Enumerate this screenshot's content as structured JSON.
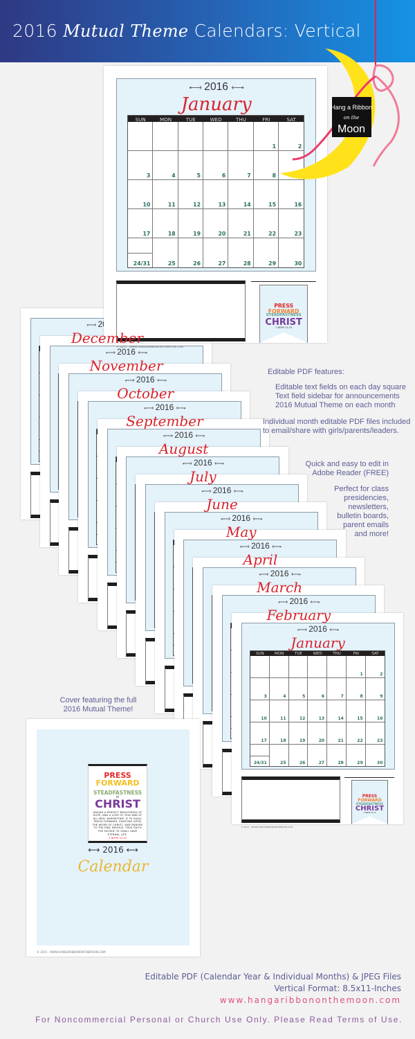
{
  "header": {
    "title_1": "2016",
    "title_script_1": "Mutual",
    "title_script_2": "Theme",
    "title_2": "Calendars:",
    "title_3": "Vertical"
  },
  "logo": {
    "line1": "Hang a Ribbon",
    "line2": "on the",
    "line3": "Moon"
  },
  "calendar": {
    "year": "2016",
    "weekdays": [
      "SUN",
      "MON",
      "TUE",
      "WED",
      "THU",
      "FRI",
      "SAT"
    ],
    "january_weeks": [
      [
        "",
        "",
        "",
        "",
        "",
        "1",
        "2"
      ],
      [
        "3",
        "4",
        "5",
        "6",
        "7",
        "8",
        "9"
      ],
      [
        "10",
        "11",
        "12",
        "13",
        "14",
        "15",
        "16"
      ],
      [
        "17",
        "18",
        "19",
        "20",
        "21",
        "22",
        "23"
      ],
      [
        "24/31",
        "25",
        "26",
        "27",
        "28",
        "29",
        "30"
      ]
    ],
    "stack_months": [
      "December",
      "November",
      "October",
      "September",
      "August",
      "July",
      "June",
      "May",
      "April",
      "March",
      "February",
      "January"
    ],
    "featured_month": "January",
    "banner": {
      "l1": "PRESS",
      "l2": "FORWARD",
      "l3": "STEADFASTNESS",
      "l4": "CHRIST",
      "l5": "2 NEPHI 31:20"
    },
    "copyright": "© 2015 · WWW.HANGARIBBONONTHEMOON.COM"
  },
  "features": {
    "heading": "Editable PDF features:",
    "items": [
      "Editable text fields on each day square",
      "Text field sidebar for announcements",
      "2016 Mutual Theme on each month"
    ],
    "individual": [
      "Individual month editable PDF files included",
      "to email/share with girls/parents/leaders."
    ],
    "quick": [
      "Quick and easy to edit in",
      "Adobe Reader (FREE)"
    ],
    "perfect": [
      "Perfect for class",
      "presidencies,",
      "newsletters,",
      "bulletin boards,",
      "parent emails",
      "and more!"
    ]
  },
  "cover": {
    "caption": [
      "Cover featuring the full",
      "2016 Mutual Theme!"
    ],
    "poster": {
      "l1": "PRESS",
      "l2": "FORWARD",
      "l3": "STEADFASTNESS",
      "l3b": "IN",
      "l4": "CHRIST",
      "scripture": "HAVING A PERFECT BRIGHTNESS OF HOPE, AND A LOVE OF GOD AND OF ALL MEN. WHEREFORE, IF YE SHALL PRESS FORWARD, FEASTING UPON THE WORD OF CHRIST, AND ENDURE TO THE END, BEHOLD, THUS SAITH THE FATHER: YE SHALL HAVE ETERNAL LIFE.",
      "ref": "2 NEPHI 31:20"
    },
    "year": "2016",
    "title": "Calendar"
  },
  "footer": {
    "formats": "Editable PDF (Calendar Year & Individual Months)  & JPEG Files",
    "size": "Vertical Format: 8.5x11-Inches",
    "url": "www.hangaribbononthemoon.com",
    "terms": "For Noncommercial Personal or Church Use Only. Please Read Terms of Use."
  },
  "colors": {
    "header_start": "#2f3983",
    "header_end": "#1592e4",
    "month": "#d8222c",
    "day_number": "#2a6d62",
    "text": "#5c5c96",
    "url": "#e0507e",
    "terms": "#8a5a9a"
  }
}
